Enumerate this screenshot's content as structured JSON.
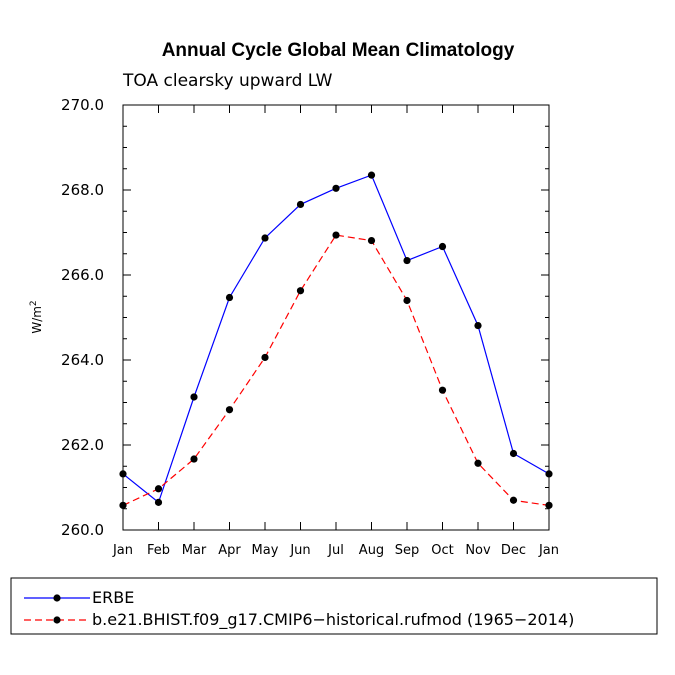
{
  "chart_data": {
    "type": "line",
    "title": "Annual Cycle Global Mean Climatology",
    "subtitle": "TOA clearsky upward LW",
    "ylabel": "W/m",
    "ylabel_sup": "2",
    "xlabel": "",
    "categories": [
      "Jan",
      "Feb",
      "Mar",
      "Apr",
      "May",
      "Jun",
      "Jul",
      "Aug",
      "Sep",
      "Oct",
      "Nov",
      "Dec",
      "Jan"
    ],
    "ylim": [
      260.0,
      270.0
    ],
    "yticks": [
      "260.0",
      "262.0",
      "264.0",
      "266.0",
      "268.0",
      "270.0"
    ],
    "grid": false,
    "series": [
      {
        "name": "ERBE",
        "color": "#0000ff",
        "dash": "solid",
        "values": [
          261.32,
          260.65,
          263.13,
          265.47,
          266.87,
          267.66,
          268.04,
          268.35,
          266.34,
          266.67,
          264.81,
          261.8,
          261.32
        ]
      },
      {
        "name": "b.e21.BHIST.f09_g17.CMIP6−historical.rufmod (1965−2014)",
        "color": "#ff0000",
        "dash": "dashed",
        "values": [
          260.58,
          260.97,
          261.67,
          262.83,
          264.06,
          265.63,
          266.94,
          266.81,
          265.4,
          263.29,
          261.57,
          260.7,
          260.58
        ]
      }
    ]
  }
}
